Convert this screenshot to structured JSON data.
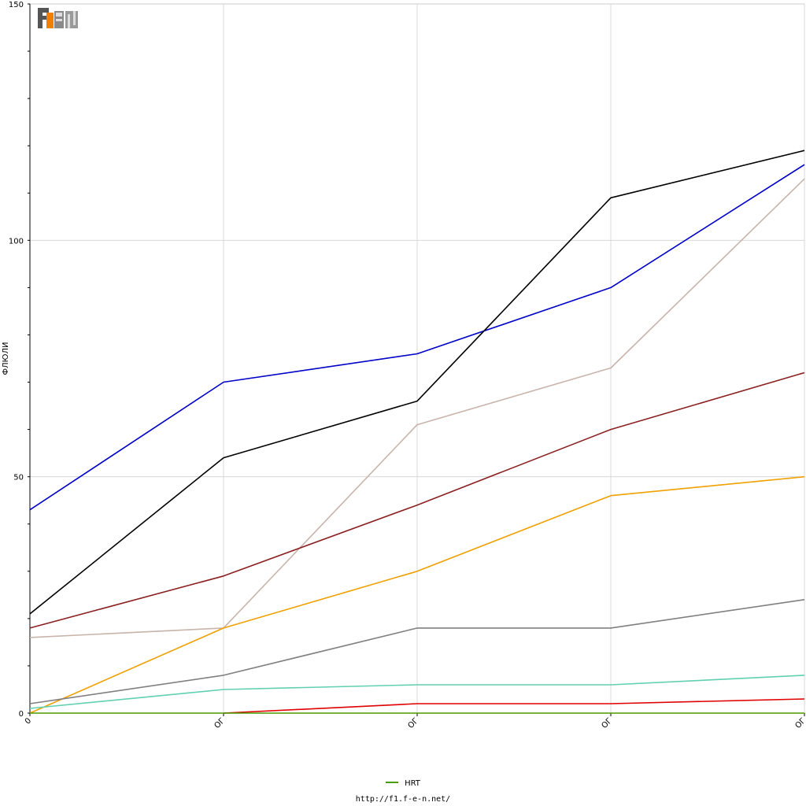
{
  "chart_data": {
    "type": "line",
    "ylabel": "ФЛЮЛИ",
    "ylim": [
      0,
      150
    ],
    "yticks": [
      0,
      50,
      100,
      150
    ],
    "x_tick_labels": [
      "0",
      "ОГ",
      "ОГ",
      "ОГ",
      "ОГ"
    ],
    "grid": true,
    "legend": [
      {
        "name": "HRT",
        "color": "#4a9a00"
      }
    ],
    "legend_position": "bottom-center",
    "series": [
      {
        "color": "#0000c8",
        "values": [
          43,
          70,
          76,
          90,
          116
        ]
      },
      {
        "color": "#000000",
        "values": [
          21,
          54,
          66,
          109,
          119
        ]
      },
      {
        "color": "#c8b4aa",
        "values": [
          16,
          18,
          61,
          73,
          113
        ]
      },
      {
        "color": "#8b2020",
        "values": [
          18,
          29,
          44,
          60,
          72
        ]
      },
      {
        "color": "#f0a000",
        "values": [
          0,
          18,
          30,
          46,
          50
        ]
      },
      {
        "color": "#808080",
        "values": [
          2,
          8,
          18,
          18,
          24
        ]
      },
      {
        "color": "#60d0b0",
        "values": [
          1,
          5,
          6,
          6,
          8
        ]
      },
      {
        "color": "#e00000",
        "values": [
          null,
          0,
          2,
          2,
          3
        ]
      },
      {
        "color": "#4a9a00",
        "values": [
          0,
          0,
          0,
          0,
          0
        ]
      }
    ]
  },
  "logo_text": "F1EN",
  "footer": {
    "url": "http://f1.f-e-n.net/"
  }
}
